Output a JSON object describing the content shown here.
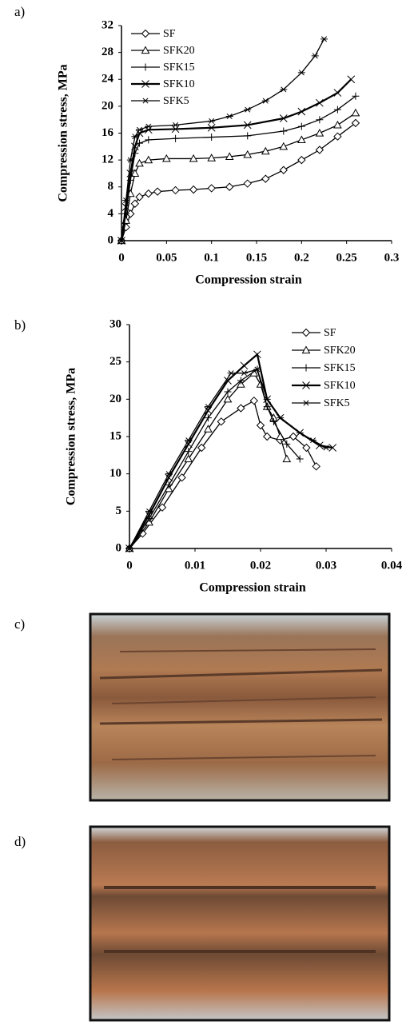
{
  "panels": [
    "a)",
    "b)",
    "c)",
    "d)"
  ],
  "chart_data": [
    {
      "type": "line",
      "x_label": "Compression strain",
      "y_label": "Compression stress, MPa",
      "xlim": [
        0,
        0.3
      ],
      "xticks": [
        0,
        0.05,
        0.1,
        0.15,
        0.2,
        0.25,
        0.3
      ],
      "ylim": [
        0,
        32
      ],
      "yticks": [
        0,
        4,
        8,
        12,
        16,
        20,
        24,
        28,
        32
      ],
      "legend": "upper left",
      "grid": false,
      "series": [
        {
          "name": "SF",
          "color": "#000000",
          "marker": "diamond",
          "x": [
            0,
            0.005,
            0.01,
            0.015,
            0.02,
            0.03,
            0.04,
            0.06,
            0.08,
            0.1,
            0.12,
            0.14,
            0.16,
            0.18,
            0.2,
            0.22,
            0.24,
            0.26
          ],
          "values": [
            0,
            2,
            4,
            5.5,
            6.5,
            7,
            7.3,
            7.5,
            7.6,
            7.8,
            8,
            8.5,
            9.2,
            10.5,
            12,
            13.5,
            15.5,
            17.5
          ]
        },
        {
          "name": "SFK20",
          "color": "#000000",
          "marker": "triangle",
          "x": [
            0,
            0.005,
            0.01,
            0.015,
            0.02,
            0.03,
            0.05,
            0.08,
            0.1,
            0.12,
            0.14,
            0.16,
            0.18,
            0.2,
            0.22,
            0.24,
            0.26
          ],
          "values": [
            0,
            3,
            7,
            10,
            11.5,
            12,
            12.2,
            12.2,
            12.3,
            12.5,
            12.8,
            13.3,
            14,
            15,
            16,
            17.2,
            19
          ]
        },
        {
          "name": "SFK15",
          "color": "#000000",
          "marker": "plus",
          "x": [
            0,
            0.005,
            0.01,
            0.015,
            0.02,
            0.03,
            0.06,
            0.1,
            0.14,
            0.18,
            0.2,
            0.22,
            0.24,
            0.26
          ],
          "values": [
            0,
            4,
            9,
            13,
            14.5,
            15,
            15.2,
            15.4,
            15.6,
            16.3,
            17,
            18,
            19.5,
            21.5
          ]
        },
        {
          "name": "SFK10",
          "color": "#000000",
          "marker": "cross",
          "x": [
            0,
            0.005,
            0.01,
            0.015,
            0.02,
            0.03,
            0.06,
            0.1,
            0.14,
            0.18,
            0.2,
            0.22,
            0.24,
            0.255
          ],
          "values": [
            0,
            5,
            10,
            14,
            16,
            16.5,
            16.6,
            16.8,
            17.2,
            18.2,
            19.2,
            20.5,
            22,
            24
          ]
        },
        {
          "name": "SFK5",
          "color": "#000000",
          "marker": "star",
          "x": [
            0,
            0.005,
            0.01,
            0.015,
            0.02,
            0.03,
            0.06,
            0.1,
            0.12,
            0.14,
            0.16,
            0.18,
            0.2,
            0.215,
            0.225
          ],
          "values": [
            0,
            6,
            12,
            15.5,
            16.5,
            17,
            17.2,
            17.8,
            18.5,
            19.5,
            20.8,
            22.5,
            25,
            27.5,
            30
          ]
        }
      ]
    },
    {
      "type": "line",
      "x_label": "Compression strain",
      "y_label": "Compression stress, MPa",
      "xlim": [
        0,
        0.04
      ],
      "xticks": [
        0,
        0.01,
        0.02,
        0.03,
        0.04
      ],
      "ylim": [
        0,
        30
      ],
      "yticks": [
        0,
        5,
        10,
        15,
        20,
        25,
        30
      ],
      "legend": "upper right",
      "grid": false,
      "series": [
        {
          "name": "SF",
          "color": "#000000",
          "marker": "diamond",
          "x": [
            0,
            0.002,
            0.005,
            0.008,
            0.011,
            0.014,
            0.017,
            0.019,
            0.02,
            0.021,
            0.023,
            0.025,
            0.027,
            0.0285
          ],
          "values": [
            0,
            2,
            5.5,
            9.5,
            13.5,
            17,
            18.8,
            19.8,
            16.5,
            15,
            14.5,
            15,
            13.5,
            11
          ]
        },
        {
          "name": "SFK20",
          "color": "#000000",
          "marker": "triangle",
          "x": [
            0,
            0.003,
            0.006,
            0.009,
            0.012,
            0.015,
            0.017,
            0.019,
            0.02,
            0.021,
            0.022,
            0.023,
            0.024
          ],
          "values": [
            0,
            3.5,
            8,
            12,
            16,
            20,
            22,
            23.5,
            22,
            19,
            17.5,
            15,
            12
          ]
        },
        {
          "name": "SFK15",
          "color": "#000000",
          "marker": "plus",
          "x": [
            0,
            0.003,
            0.006,
            0.009,
            0.012,
            0.015,
            0.017,
            0.0195,
            0.021,
            0.022,
            0.024,
            0.026
          ],
          "values": [
            0,
            4,
            8.5,
            13,
            17.5,
            21,
            22.5,
            24,
            19,
            17,
            14,
            12
          ]
        },
        {
          "name": "SFK10",
          "color": "#000000",
          "marker": "cross",
          "x": [
            0,
            0.003,
            0.006,
            0.009,
            0.012,
            0.015,
            0.0175,
            0.0195,
            0.021,
            0.023,
            0.026,
            0.029,
            0.031
          ],
          "values": [
            0,
            4.5,
            9.5,
            14,
            18.5,
            22.5,
            24.5,
            26,
            20,
            17.5,
            15.5,
            13.8,
            13.5
          ]
        },
        {
          "name": "SFK5",
          "color": "#000000",
          "marker": "star",
          "x": [
            0,
            0.003,
            0.006,
            0.009,
            0.012,
            0.0155,
            0.0175,
            0.0195,
            0.021,
            0.023,
            0.026,
            0.028,
            0.03
          ],
          "values": [
            0,
            5,
            10,
            14.5,
            19,
            23.5,
            23.5,
            24,
            20,
            17.5,
            15.5,
            14.5,
            13.5
          ]
        }
      ]
    }
  ]
}
